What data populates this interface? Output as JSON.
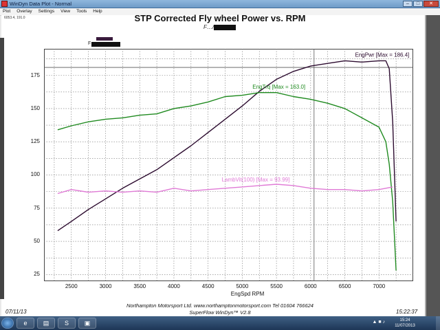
{
  "window": {
    "title": "WinDyn Data Plot - Normal",
    "menu": [
      "Plot",
      "Overlay",
      "Settings",
      "View",
      "Tools",
      "Help"
    ],
    "coord_readout": "6053.4, 191.0"
  },
  "plot": {
    "title": "STP Corrected Fly wheel Power vs. RPM",
    "subtitle": "F…/74,",
    "legend_label": "F"
  },
  "footer": {
    "date": "07/11/13",
    "time": "15:22:37",
    "line1": "Northampton Motorsport Ltd. www.northamptonmotorsport.com Tel 01604 766624",
    "line2": "SuperFlow WinDyn™ V2.8"
  },
  "taskbar": {
    "clock_time": "15:24",
    "clock_date": "11/07/2013",
    "tray": "▲ ■ ♪"
  },
  "colors": {
    "power": "#2b0a2e",
    "torque": "#1f8a1f",
    "lambda": "#e07ad6",
    "refline": "#555555"
  },
  "chart_data": {
    "type": "line",
    "title": "STP Corrected Fly wheel Power vs. RPM",
    "xlabel": "EngSpd  RPM",
    "ylabel": "",
    "xlim": [
      2100,
      7500
    ],
    "ylim": [
      20,
      195
    ],
    "xticks": [
      2500,
      3000,
      3500,
      4000,
      4500,
      5000,
      5500,
      6000,
      6500,
      7000
    ],
    "yticks": [
      25,
      50,
      75,
      100,
      125,
      150,
      175
    ],
    "grid": true,
    "reference_lines": {
      "x": 6050,
      "y": 181
    },
    "series": [
      {
        "name": "EngPwr",
        "annotation": "EngPwr [Max = 186.4]",
        "color": "#2b0a2e",
        "x": [
          2300,
          2500,
          2750,
          3000,
          3250,
          3500,
          3750,
          4000,
          4250,
          4500,
          4750,
          5000,
          5250,
          5500,
          5750,
          6000,
          6250,
          6500,
          6750,
          7000,
          7100,
          7150,
          7200,
          7250
        ],
        "y": [
          58,
          65,
          74,
          82,
          90,
          97,
          104,
          113,
          122,
          132,
          142,
          152,
          163,
          172,
          178,
          182,
          184,
          186,
          185,
          186,
          186,
          180,
          140,
          65
        ]
      },
      {
        "name": "EngTrq",
        "annotation": "EngTrq [Max = 163.0]",
        "color": "#1f8a1f",
        "x": [
          2300,
          2500,
          2750,
          3000,
          3250,
          3500,
          3750,
          4000,
          4250,
          4500,
          4750,
          5000,
          5250,
          5500,
          5750,
          6000,
          6250,
          6500,
          6750,
          7000,
          7100,
          7150,
          7200,
          7250
        ],
        "y": [
          134,
          137,
          140,
          142,
          143,
          145,
          146,
          150,
          152,
          155,
          159,
          160,
          162,
          162,
          159,
          157,
          154,
          150,
          143,
          136,
          125,
          108,
          80,
          28
        ]
      },
      {
        "name": "LambVit",
        "annotation": "LambVit(100) [Max = 93.99]",
        "color": "#e07ad6",
        "x": [
          2300,
          2500,
          2750,
          3000,
          3250,
          3500,
          3750,
          4000,
          4250,
          4500,
          4750,
          5000,
          5250,
          5500,
          5750,
          6000,
          6250,
          6500,
          6750,
          7000,
          7200
        ],
        "y": [
          86,
          89,
          87,
          88,
          87,
          88,
          87,
          90,
          88,
          89,
          90,
          91,
          92,
          93,
          92,
          90,
          89,
          89,
          88,
          89,
          91
        ]
      }
    ]
  }
}
